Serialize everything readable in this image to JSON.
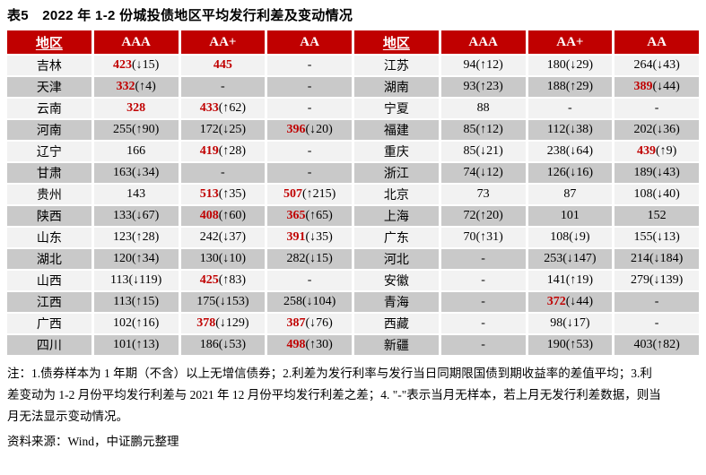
{
  "title": "表5　2022 年 1-2 份城投债地区平均发行利差及变动情况",
  "colors": {
    "header_bg": "#C00000",
    "header_text": "#FFFFFF",
    "row_light": "#F2F2F2",
    "row_dark": "#C9C9C9",
    "highlight_red": "#C00000"
  },
  "table": {
    "headers": [
      "地区",
      "AAA",
      "AA+",
      "AA",
      "地区",
      "AAA",
      "AA+",
      "AA"
    ],
    "rows": [
      [
        {
          "type": "region",
          "text": "吉林"
        },
        {
          "type": "value",
          "value": "423",
          "change": "(↓15)",
          "highlight": true
        },
        {
          "type": "value",
          "value": "445",
          "change": "",
          "highlight": true
        },
        {
          "type": "value",
          "value": "-",
          "change": "",
          "highlight": false
        },
        {
          "type": "region",
          "text": "江苏"
        },
        {
          "type": "value",
          "value": "94",
          "change": "(↑12)",
          "highlight": false
        },
        {
          "type": "value",
          "value": "180",
          "change": "(↓29)",
          "highlight": false
        },
        {
          "type": "value",
          "value": "264",
          "change": "(↓43)",
          "highlight": false
        }
      ],
      [
        {
          "type": "region",
          "text": "天津"
        },
        {
          "type": "value",
          "value": "332",
          "change": "(↑4)",
          "highlight": true
        },
        {
          "type": "value",
          "value": "-",
          "change": "",
          "highlight": false
        },
        {
          "type": "value",
          "value": "-",
          "change": "",
          "highlight": false
        },
        {
          "type": "region",
          "text": "湖南"
        },
        {
          "type": "value",
          "value": "93",
          "change": "(↑23)",
          "highlight": false
        },
        {
          "type": "value",
          "value": "188",
          "change": "(↑29)",
          "highlight": false
        },
        {
          "type": "value",
          "value": "389",
          "change": "(↓44)",
          "highlight": true
        }
      ],
      [
        {
          "type": "region",
          "text": "云南"
        },
        {
          "type": "value",
          "value": "328",
          "change": "",
          "highlight": true
        },
        {
          "type": "value",
          "value": "433",
          "change": "(↑62)",
          "highlight": true
        },
        {
          "type": "value",
          "value": "-",
          "change": "",
          "highlight": false
        },
        {
          "type": "region",
          "text": "宁夏"
        },
        {
          "type": "value",
          "value": "88",
          "change": "",
          "highlight": false
        },
        {
          "type": "value",
          "value": "-",
          "change": "",
          "highlight": false
        },
        {
          "type": "value",
          "value": "-",
          "change": "",
          "highlight": false
        }
      ],
      [
        {
          "type": "region",
          "text": "河南"
        },
        {
          "type": "value",
          "value": "255",
          "change": "(↑90)",
          "highlight": false
        },
        {
          "type": "value",
          "value": "172",
          "change": "(↓25)",
          "highlight": false
        },
        {
          "type": "value",
          "value": "396",
          "change": "(↓20)",
          "highlight": true
        },
        {
          "type": "region",
          "text": "福建"
        },
        {
          "type": "value",
          "value": "85",
          "change": "(↑12)",
          "highlight": false
        },
        {
          "type": "value",
          "value": "112",
          "change": "(↓38)",
          "highlight": false
        },
        {
          "type": "value",
          "value": "202",
          "change": "(↓36)",
          "highlight": false
        }
      ],
      [
        {
          "type": "region",
          "text": "辽宁"
        },
        {
          "type": "value",
          "value": "166",
          "change": "",
          "highlight": false
        },
        {
          "type": "value",
          "value": "419",
          "change": "(↑28)",
          "highlight": true
        },
        {
          "type": "value",
          "value": "-",
          "change": "",
          "highlight": false
        },
        {
          "type": "region",
          "text": "重庆"
        },
        {
          "type": "value",
          "value": "85",
          "change": "(↓21)",
          "highlight": false
        },
        {
          "type": "value",
          "value": "238",
          "change": "(↓64)",
          "highlight": false
        },
        {
          "type": "value",
          "value": "439",
          "change": "(↑9)",
          "highlight": true
        }
      ],
      [
        {
          "type": "region",
          "text": "甘肃"
        },
        {
          "type": "value",
          "value": "163",
          "change": "(↓34)",
          "highlight": false
        },
        {
          "type": "value",
          "value": "-",
          "change": "",
          "highlight": false
        },
        {
          "type": "value",
          "value": "-",
          "change": "",
          "highlight": false
        },
        {
          "type": "region",
          "text": "浙江"
        },
        {
          "type": "value",
          "value": "74",
          "change": "(↓12)",
          "highlight": false
        },
        {
          "type": "value",
          "value": "126",
          "change": "(↓16)",
          "highlight": false
        },
        {
          "type": "value",
          "value": "189",
          "change": "(↓43)",
          "highlight": false
        }
      ],
      [
        {
          "type": "region",
          "text": "贵州"
        },
        {
          "type": "value",
          "value": "143",
          "change": "",
          "highlight": false
        },
        {
          "type": "value",
          "value": "513",
          "change": "(↑35)",
          "highlight": true
        },
        {
          "type": "value",
          "value": "507",
          "change": "(↑215)",
          "highlight": true
        },
        {
          "type": "region",
          "text": "北京"
        },
        {
          "type": "value",
          "value": "73",
          "change": "",
          "highlight": false
        },
        {
          "type": "value",
          "value": "87",
          "change": "",
          "highlight": false
        },
        {
          "type": "value",
          "value": "108",
          "change": "(↓40)",
          "highlight": false
        }
      ],
      [
        {
          "type": "region",
          "text": "陕西"
        },
        {
          "type": "value",
          "value": "133",
          "change": "(↓67)",
          "highlight": false
        },
        {
          "type": "value",
          "value": "408",
          "change": "(↑60)",
          "highlight": true
        },
        {
          "type": "value",
          "value": "365",
          "change": "(↑65)",
          "highlight": true
        },
        {
          "type": "region",
          "text": "上海"
        },
        {
          "type": "value",
          "value": "72",
          "change": "(↑20)",
          "highlight": false
        },
        {
          "type": "value",
          "value": "101",
          "change": "",
          "highlight": false
        },
        {
          "type": "value",
          "value": "152",
          "change": "",
          "highlight": false
        }
      ],
      [
        {
          "type": "region",
          "text": "山东"
        },
        {
          "type": "value",
          "value": "123",
          "change": "(↑28)",
          "highlight": false
        },
        {
          "type": "value",
          "value": "242",
          "change": "(↓37)",
          "highlight": false
        },
        {
          "type": "value",
          "value": "391",
          "change": "(↓35)",
          "highlight": true
        },
        {
          "type": "region",
          "text": "广东"
        },
        {
          "type": "value",
          "value": "70",
          "change": "(↑31)",
          "highlight": false
        },
        {
          "type": "value",
          "value": "108",
          "change": "(↓9)",
          "highlight": false
        },
        {
          "type": "value",
          "value": "155",
          "change": "(↓13)",
          "highlight": false
        }
      ],
      [
        {
          "type": "region",
          "text": "湖北"
        },
        {
          "type": "value",
          "value": "120",
          "change": "(↑34)",
          "highlight": false
        },
        {
          "type": "value",
          "value": "130",
          "change": "(↓10)",
          "highlight": false
        },
        {
          "type": "value",
          "value": "282",
          "change": "(↓15)",
          "highlight": false
        },
        {
          "type": "region",
          "text": "河北"
        },
        {
          "type": "value",
          "value": "-",
          "change": "",
          "highlight": false
        },
        {
          "type": "value",
          "value": "253",
          "change": "(↓147)",
          "highlight": false
        },
        {
          "type": "value",
          "value": "214",
          "change": "(↓184)",
          "highlight": false
        }
      ],
      [
        {
          "type": "region",
          "text": "山西"
        },
        {
          "type": "value",
          "value": "113",
          "change": "(↓119)",
          "highlight": false
        },
        {
          "type": "value",
          "value": "425",
          "change": "(↑83)",
          "highlight": true
        },
        {
          "type": "value",
          "value": "-",
          "change": "",
          "highlight": false
        },
        {
          "type": "region",
          "text": "安徽"
        },
        {
          "type": "value",
          "value": "-",
          "change": "",
          "highlight": false
        },
        {
          "type": "value",
          "value": "141",
          "change": "(↑19)",
          "highlight": false
        },
        {
          "type": "value",
          "value": "279",
          "change": "(↓139)",
          "highlight": false
        }
      ],
      [
        {
          "type": "region",
          "text": "江西"
        },
        {
          "type": "value",
          "value": "113",
          "change": "(↑15)",
          "highlight": false
        },
        {
          "type": "value",
          "value": "175",
          "change": "(↓153)",
          "highlight": false
        },
        {
          "type": "value",
          "value": "258",
          "change": "(↓104)",
          "highlight": false
        },
        {
          "type": "region",
          "text": "青海"
        },
        {
          "type": "value",
          "value": "-",
          "change": "",
          "highlight": false
        },
        {
          "type": "value",
          "value": "372",
          "change": "(↓44)",
          "highlight": true
        },
        {
          "type": "value",
          "value": "-",
          "change": "",
          "highlight": false
        }
      ],
      [
        {
          "type": "region",
          "text": "广西"
        },
        {
          "type": "value",
          "value": "102",
          "change": "(↑16)",
          "highlight": false
        },
        {
          "type": "value",
          "value": "378",
          "change": "(↓129)",
          "highlight": true
        },
        {
          "type": "value",
          "value": "387",
          "change": "(↓76)",
          "highlight": true
        },
        {
          "type": "region",
          "text": "西藏"
        },
        {
          "type": "value",
          "value": "-",
          "change": "",
          "highlight": false
        },
        {
          "type": "value",
          "value": "98",
          "change": "(↓17)",
          "highlight": false
        },
        {
          "type": "value",
          "value": "-",
          "change": "",
          "highlight": false
        }
      ],
      [
        {
          "type": "region",
          "text": "四川"
        },
        {
          "type": "value",
          "value": "101",
          "change": "(↑13)",
          "highlight": false
        },
        {
          "type": "value",
          "value": "186",
          "change": "(↓53)",
          "highlight": false
        },
        {
          "type": "value",
          "value": "498",
          "change": "(↑30)",
          "highlight": true
        },
        {
          "type": "region",
          "text": "新疆"
        },
        {
          "type": "value",
          "value": "-",
          "change": "",
          "highlight": false
        },
        {
          "type": "value",
          "value": "190",
          "change": "(↑53)",
          "highlight": false
        },
        {
          "type": "value",
          "value": "403",
          "change": "(↑82)",
          "highlight": false
        }
      ]
    ]
  },
  "notes": {
    "line1": "注：1.债券样本为 1 年期（不含）以上无增信债券；2.利差为发行利率与发行当日同期限国债到期收益率的差值平均；3.利",
    "line2": "差变动为 1-2 月份平均发行利差与 2021 年 12 月份平均发行利差之差；4. \"-\"表示当月无样本，若上月无发行利差数据，则当",
    "line3": "月无法显示变动情况。"
  },
  "source": "资料来源：Wind，中证鹏元整理"
}
